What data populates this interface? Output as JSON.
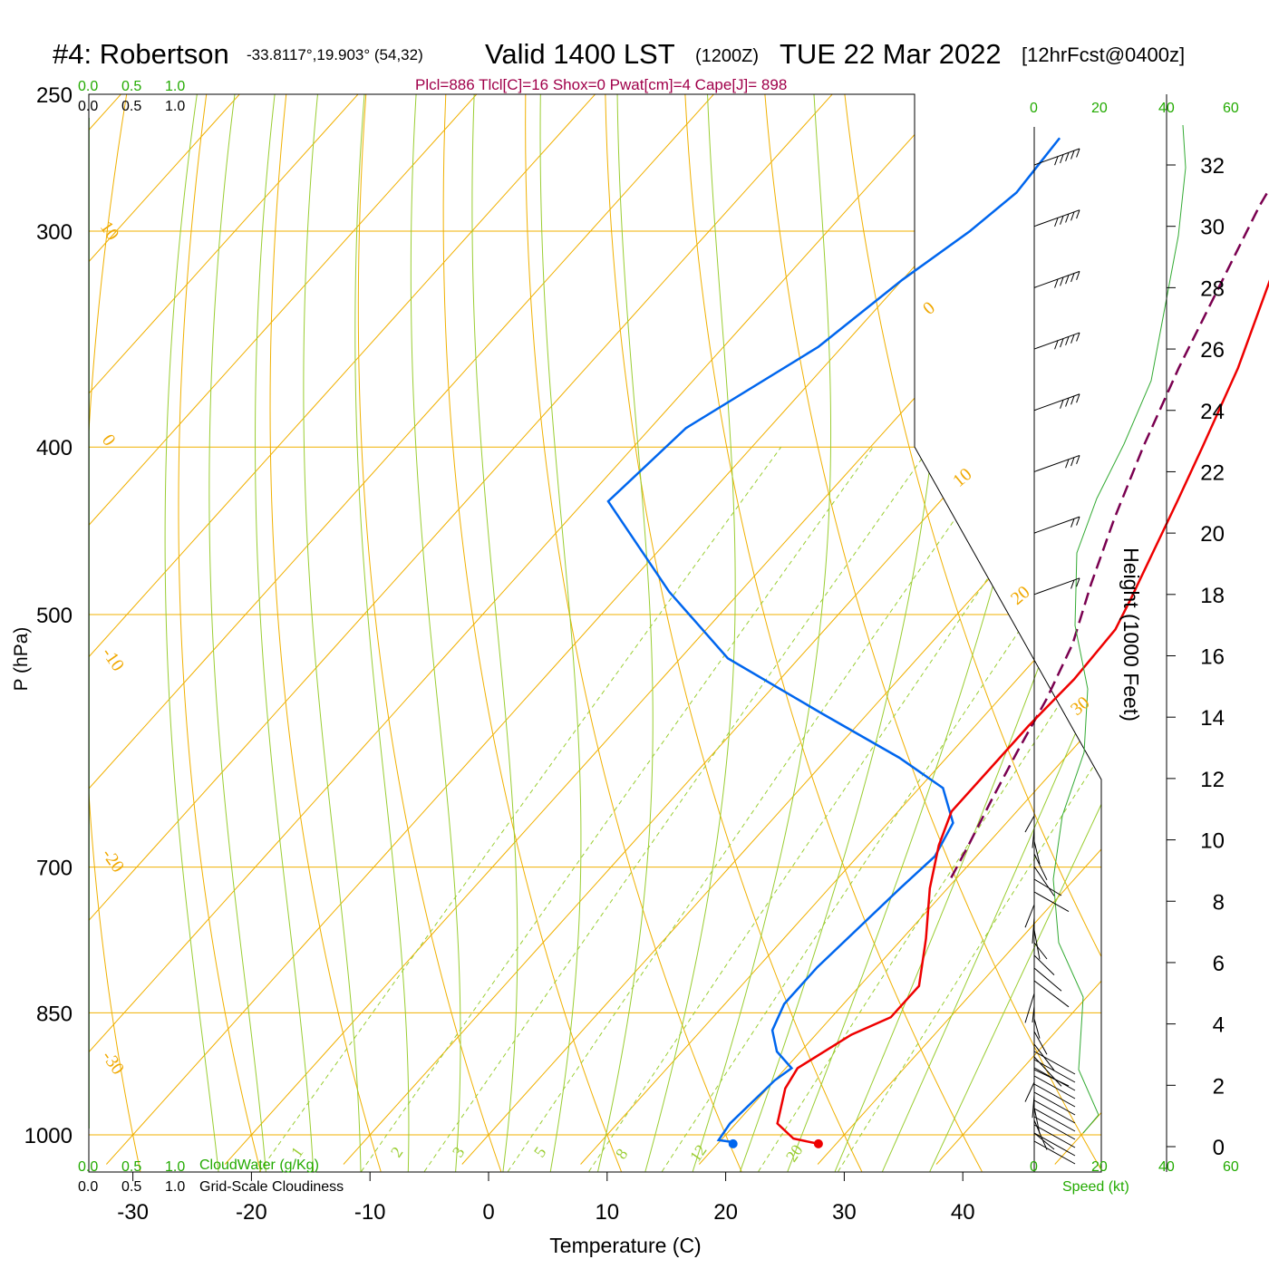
{
  "title": {
    "station": "#4: Robertson",
    "coords": "-33.8117°,19.903° (54,32)",
    "valid": "Valid 1400 LST",
    "zulu": "(1200Z)",
    "date": "TUE 22 Mar 2022",
    "forecast": "[12hrFcst@0400z]"
  },
  "indices": "Plcl=886 Tlcl[C]=16 Shox=0 Pwat[cm]=4 Cape[J]= 898",
  "labels": {
    "xlabel": "Temperature (C)",
    "ylabel": "P (hPa)",
    "height_label": "Height (1000 Feet)",
    "speed_label": "Speed (kt)",
    "cloudwater_label": "CloudWater (g/Kg)",
    "cloudiness_label": "Grid-Scale Cloudiness",
    "scale_top_green": [
      "0.0",
      "0.5",
      "1.0"
    ],
    "scale_top_black": [
      "0.0",
      "0.5",
      "1.0"
    ],
    "scale_bot_green": [
      "0.0",
      "0.5",
      "1.0"
    ],
    "scale_bot_black": [
      "0.0",
      "0.5",
      "1.0"
    ],
    "speed_ticks_top": [
      "0",
      "20",
      "40",
      "60"
    ],
    "speed_ticks_bottom": [
      "0",
      "20",
      "40",
      "60"
    ]
  },
  "colors": {
    "temperature": "#ee0000",
    "dewpoint": "#0066ee",
    "parcel": "#7a0050",
    "isotherm": "#f0b000",
    "dry_adiabat": "#f0b000",
    "moist_adiabat": "#9acd32",
    "mixing_ratio": "#9acd32",
    "height_profile": "#33aa33",
    "indices_text": "#a0004a"
  },
  "chart_data": {
    "type": "line",
    "chart_kind": "skew-T log-P sounding",
    "x_axis": {
      "label": "Temperature (C)",
      "ticks": [
        -30,
        -20,
        -10,
        0,
        10,
        20,
        30,
        40
      ]
    },
    "y_axis": {
      "label": "P (hPa)",
      "scale": "log",
      "ticks": [
        250,
        300,
        400,
        500,
        700,
        850,
        1000
      ]
    },
    "height_axis": {
      "label": "Height (1000 Feet)",
      "ticks": [
        0,
        2,
        4,
        6,
        8,
        10,
        12,
        14,
        16,
        18,
        20,
        22,
        24,
        26,
        28,
        30,
        32
      ]
    },
    "dry_adiabat_labels": [
      "10",
      "0",
      "-10",
      "-20",
      "-30"
    ],
    "moist_adiabat_labels": [
      "0",
      "10",
      "20",
      "30"
    ],
    "mixing_ratio_labels": [
      "1",
      "2",
      "3",
      "5",
      "8",
      "12",
      "20"
    ],
    "temperature": {
      "name": "Temperature",
      "points": [
        [
          1012,
          28.5
        ],
        [
          1005,
          26.0
        ],
        [
          985,
          23.5
        ],
        [
          940,
          21.5
        ],
        [
          915,
          21.0
        ],
        [
          875,
          23.0
        ],
        [
          855,
          25.0
        ],
        [
          820,
          25.0
        ],
        [
          770,
          22.0
        ],
        [
          720,
          18.5
        ],
        [
          680,
          16.0
        ],
        [
          650,
          14.5
        ],
        [
          620,
          14.5
        ],
        [
          580,
          14.5
        ],
        [
          545,
          14.8
        ],
        [
          510,
          14.5
        ],
        [
          490,
          13.5
        ],
        [
          430,
          10.0
        ],
        [
          400,
          8.0
        ],
        [
          360,
          5.0
        ],
        [
          320,
          1.0
        ],
        [
          290,
          -2.0
        ],
        [
          265,
          -3.5
        ]
      ]
    },
    "dewpoint": {
      "name": "Dewpoint",
      "points": [
        [
          1010,
          21.3
        ],
        [
          1007,
          19.8
        ],
        [
          985,
          19.5
        ],
        [
          930,
          20.0
        ],
        [
          915,
          20.5
        ],
        [
          895,
          18.0
        ],
        [
          870,
          16.0
        ],
        [
          840,
          15.0
        ],
        [
          800,
          15.0
        ],
        [
          720,
          16.0
        ],
        [
          690,
          16.5
        ],
        [
          660,
          15.5
        ],
        [
          630,
          12.0
        ],
        [
          605,
          6.0
        ],
        [
          570,
          -4.0
        ],
        [
          530,
          -16.0
        ],
        [
          485,
          -26.0
        ],
        [
          430,
          -38.0
        ],
        [
          390,
          -37.0
        ],
        [
          350,
          -32.0
        ],
        [
          320,
          -30.0
        ],
        [
          300,
          -28.0
        ],
        [
          285,
          -27.0
        ],
        [
          265,
          -27.5
        ]
      ]
    },
    "parcel": {
      "name": "Parcel",
      "points": [
        [
          710,
          19.5
        ],
        [
          680,
          18.5
        ],
        [
          640,
          17.0
        ],
        [
          600,
          15.5
        ],
        [
          560,
          14.0
        ],
        [
          520,
          12.0
        ],
        [
          480,
          9.0
        ],
        [
          440,
          6.0
        ],
        [
          400,
          3.0
        ],
        [
          360,
          0.0
        ],
        [
          320,
          -3.0
        ],
        [
          290,
          -5.5
        ],
        [
          262,
          -7.5
        ]
      ]
    },
    "surface_points": {
      "temperature": 28.5,
      "dewpoint": 21.3,
      "pressure": 1012
    },
    "wind_barbs_kt": [
      {
        "height_kft": 32,
        "speed": 45
      },
      {
        "height_kft": 30,
        "speed": 45
      },
      {
        "height_kft": 28,
        "speed": 45
      },
      {
        "height_kft": 26,
        "speed": 45
      },
      {
        "height_kft": 24,
        "speed": 40
      },
      {
        "height_kft": 22,
        "speed": 30
      },
      {
        "height_kft": 20,
        "speed": 20
      },
      {
        "height_kft": 18,
        "speed": 15
      }
    ]
  }
}
